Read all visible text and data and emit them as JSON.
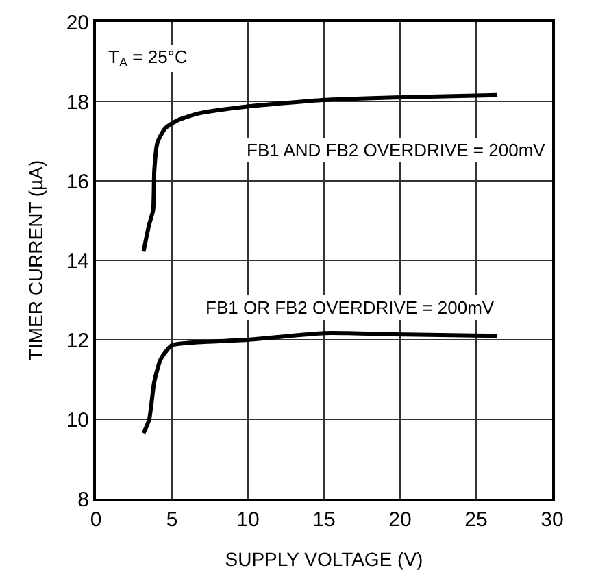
{
  "chart_data": {
    "type": "line",
    "xlabel": "SUPPLY VOLTAGE (V)",
    "ylabel": "TIMER CURRENT (µA)",
    "xlim": [
      0,
      30
    ],
    "xticks": [
      0,
      5,
      10,
      15,
      20,
      25,
      30
    ],
    "ylim": [
      8,
      20
    ],
    "yticks": [
      8,
      10,
      12,
      14,
      16,
      18,
      20
    ],
    "grid": true,
    "marker": "none",
    "line_style": "solid",
    "series": [
      {
        "color": "#000000",
        "x": [
          3.13,
          3.5,
          3.76,
          3.84,
          4.04,
          4.55,
          5.4,
          6.8,
          9.95,
          15.07,
          19.6,
          26.4
        ],
        "values": [
          14.22,
          14.9,
          15.26,
          16.27,
          16.96,
          17.32,
          17.53,
          17.7,
          17.87,
          18.04,
          18.1,
          18.16
        ]
      },
      {
        "color": "#000000",
        "x": [
          3.13,
          3.5,
          3.84,
          4.27,
          4.98,
          5.97,
          9.95,
          15.07,
          19.6,
          26.4
        ],
        "values": [
          9.65,
          9.99,
          10.95,
          11.52,
          11.86,
          11.92,
          12.0,
          12.17,
          12.14,
          12.1
        ]
      }
    ],
    "annotations": [
      "T$_{A}$ = 25°C",
      "FB1 AND FB2 OVERDRIVE = 200mV",
      "FB1 OR FB2 OVERDRIVE = 200mV"
    ]
  }
}
